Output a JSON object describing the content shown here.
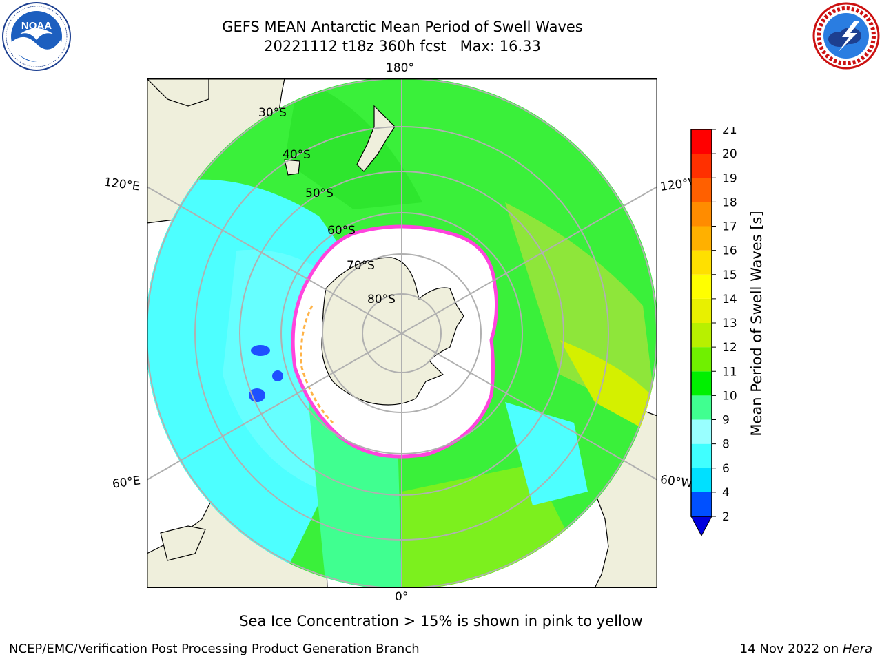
{
  "title": {
    "line1": "GEFS MEAN Antarctic Mean Period of Swell Waves",
    "line2": "20221112 t18z 360h fcst   Max: 16.33"
  },
  "logos": {
    "left": {
      "icon": "noaa-logo",
      "text": "NOAA",
      "ring_text": "NATIONAL OCEANIC AND ATMOSPHERIC ADMINISTRATION · U.S. DEPARTMENT OF COMMERCE"
    },
    "right": {
      "icon": "nws-logo",
      "ring_text": "NATIONAL WEATHER SERVICE"
    }
  },
  "map": {
    "projection": "south-polar-stereographic",
    "longitude_labels": {
      "top": "180°",
      "bottom": "0°",
      "left_upper": "120°E",
      "left_lower": "60°E",
      "right_upper": "120°W",
      "right_lower": "60°W"
    },
    "latitude_labels": [
      "30°S",
      "40°S",
      "50°S",
      "60°S",
      "70°S",
      "80°S"
    ],
    "colors": {
      "land": "#efefdc",
      "sea_ice": "#ffffff",
      "ice_edge": "#ff44dd",
      "frame": "#000000"
    }
  },
  "colorbar": {
    "label": "Mean Period of Swell Waves [s]",
    "ticks": [
      "2",
      "4",
      "6",
      "8",
      "9",
      "10",
      "11",
      "12",
      "13",
      "14",
      "15",
      "16",
      "17",
      "18",
      "19",
      "20",
      "21"
    ],
    "colors": [
      "#0050ff",
      "#00e0ff",
      "#40ffff",
      "#99ffff",
      "#40ff90",
      "#00f000",
      "#70f000",
      "#b8f000",
      "#e8f000",
      "#ffff00",
      "#ffe000",
      "#ffb000",
      "#ff8c00",
      "#ff6000",
      "#ff3000",
      "#ff0000"
    ],
    "extend_color": "#0000dd"
  },
  "footer": {
    "note": "Sea Ice Concentration > 15% is shown in pink to yellow",
    "credit": "NCEP/EMC/Verification Post Processing Product Generation Branch",
    "date": "14 Nov 2022 on ",
    "machine": "Hera"
  }
}
